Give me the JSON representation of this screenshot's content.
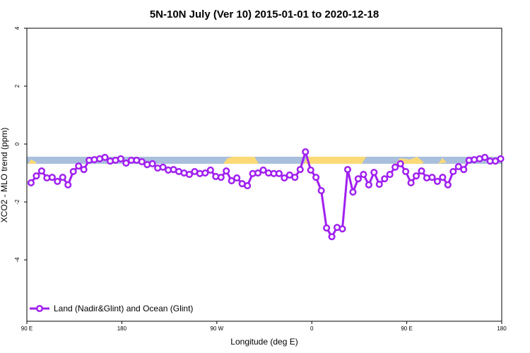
{
  "chart_data": {
    "type": "line",
    "title": "5N-10N July (Ver 10)   2015-01-01 to 2020-12-18",
    "xlabel": "Longitude (deg E)",
    "ylabel": "XCO2 - MLO trend (ppm)",
    "x": [
      94,
      99,
      104,
      109,
      114,
      119,
      124,
      129,
      134,
      139,
      144,
      149,
      154,
      159,
      164,
      169,
      174,
      179,
      184,
      189,
      194,
      199,
      204,
      209,
      214,
      219,
      224,
      229,
      234,
      239,
      244,
      249,
      254,
      259,
      264,
      269,
      274,
      279,
      284,
      289,
      294,
      299,
      304,
      309,
      314,
      319,
      324,
      329,
      334,
      339,
      344,
      349,
      354,
      359,
      364,
      369,
      374,
      379,
      384,
      389,
      394,
      399,
      404,
      409,
      414,
      419,
      424,
      429,
      434,
      439,
      444,
      449,
      454,
      459,
      464,
      469,
      474,
      479,
      484,
      489,
      494,
      499,
      504,
      509,
      514,
      519,
      524,
      529,
      534,
      539
    ],
    "series": [
      {
        "name": "Land (Nadir&Glint) and Ocean (Glint)",
        "color": "#a020f0",
        "values": [
          -1.34,
          -1.1,
          -0.93,
          -1.17,
          -1.15,
          -1.29,
          -1.15,
          -1.41,
          -0.95,
          -0.76,
          -0.88,
          -0.56,
          -0.54,
          -0.51,
          -0.46,
          -0.59,
          -0.56,
          -0.51,
          -0.66,
          -0.56,
          -0.56,
          -0.61,
          -0.71,
          -0.68,
          -0.83,
          -0.8,
          -0.9,
          -0.88,
          -0.95,
          -1.0,
          -1.05,
          -0.95,
          -1.02,
          -1.0,
          -0.9,
          -1.12,
          -1.15,
          -0.93,
          -1.27,
          -1.17,
          -1.37,
          -1.44,
          -1.02,
          -1.0,
          -0.9,
          -1.0,
          -1.02,
          -1.02,
          -1.17,
          -1.07,
          -1.15,
          -0.88,
          -0.27,
          -0.9,
          -1.15,
          -1.61,
          -2.9,
          -3.2,
          -2.88,
          -2.93,
          -0.88,
          -1.66,
          -1.2,
          -1.05,
          -1.41,
          -0.98,
          -1.39,
          -1.2,
          -1.05,
          -0.8,
          -0.68,
          -0.95,
          -1.34,
          -1.1,
          -0.93,
          -1.17,
          -1.15,
          -1.29,
          -1.15,
          -1.41,
          -0.95,
          -0.78,
          -0.88,
          -0.56,
          -0.54,
          -0.51,
          -0.46,
          -0.59,
          -0.59,
          -0.51
        ]
      }
    ],
    "xlim": [
      90,
      540
    ],
    "xticks": [
      {
        "value": 90,
        "label": "90 E"
      },
      180,
      {
        "value": 270,
        "label": "90 W"
      },
      {
        "value": 360,
        "label": "0"
      },
      {
        "value": 450,
        "label": "90 E"
      },
      {
        "value": 540,
        "label": "180"
      }
    ],
    "ylim": [
      -6.12,
      4
    ],
    "yticks": [
      4,
      2,
      0,
      -2,
      -4
    ],
    "legend": "bottom-left"
  }
}
